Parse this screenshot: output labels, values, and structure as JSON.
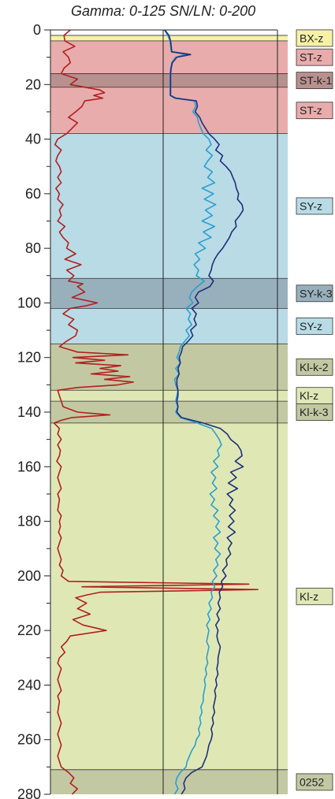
{
  "chart_data": {
    "type": "line",
    "title": "Gamma: 0-125  SN/LN: 0-200",
    "y_axis": {
      "min": 0,
      "max": 280,
      "inverted": true,
      "ticks": [
        0,
        20,
        40,
        60,
        80,
        100,
        120,
        140,
        160,
        180,
        200,
        220,
        240,
        260,
        280
      ]
    },
    "tracks": [
      {
        "name": "Gamma",
        "range": [
          0,
          125
        ]
      },
      {
        "name": "SN/LN",
        "range": [
          0,
          200
        ]
      }
    ],
    "zones": [
      {
        "label": "BX-z",
        "top": 2,
        "bottom": 4,
        "color": "#f7f1a6"
      },
      {
        "label": "ST-z",
        "top": 4,
        "bottom": 16,
        "color": "#e8acac"
      },
      {
        "label": "ST-k-1",
        "top": 16,
        "bottom": 21,
        "color": "#b8908e"
      },
      {
        "label": "ST-z",
        "top": 21,
        "bottom": 38,
        "color": "#e8acac"
      },
      {
        "label": "SY-z",
        "top": 38,
        "bottom": 91,
        "color": "#b9dbe6"
      },
      {
        "label": "SY-k-3",
        "top": 91,
        "bottom": 102,
        "color": "#98b0bc"
      },
      {
        "label": "SY-z",
        "top": 102,
        "bottom": 115,
        "color": "#b9dbe6"
      },
      {
        "label": "Kl-k-2",
        "top": 115,
        "bottom": 132,
        "color": "#c2c9a2"
      },
      {
        "label": "Kl-z",
        "top": 132,
        "bottom": 136,
        "color": "#dfe8b5"
      },
      {
        "label": "Kl-k-3",
        "top": 136,
        "bottom": 144,
        "color": "#c2c9a2"
      },
      {
        "label": "Kl-z",
        "top": 144,
        "bottom": 271,
        "color": "#dfe8b5"
      },
      {
        "label": "0252",
        "top": 271,
        "bottom": 280,
        "color": "#c2c9a2"
      }
    ],
    "series": [
      {
        "name": "Gamma",
        "color": "#b22020",
        "track": "Gamma",
        "depth": [
          0,
          2,
          4,
          6,
          8,
          10,
          12,
          14,
          16,
          18,
          20,
          22,
          23,
          24,
          25,
          26,
          28,
          30,
          32,
          34,
          36,
          38,
          40,
          42,
          44,
          46,
          48,
          50,
          52,
          54,
          56,
          58,
          60,
          62,
          64,
          66,
          68,
          70,
          72,
          74,
          76,
          78,
          80,
          82,
          84,
          86,
          88,
          90,
          92,
          93,
          94,
          96,
          98,
          100,
          101,
          102,
          104,
          106,
          108,
          110,
          112,
          114,
          116,
          118,
          119,
          120,
          121,
          122,
          123,
          124,
          125,
          126,
          127,
          128,
          129,
          130,
          131,
          132,
          134,
          136,
          138,
          140,
          141,
          142,
          143,
          144,
          146,
          148,
          150,
          152,
          154,
          156,
          158,
          160,
          162,
          164,
          166,
          168,
          170,
          172,
          174,
          176,
          178,
          180,
          182,
          184,
          186,
          188,
          190,
          192,
          194,
          196,
          198,
          200,
          202,
          203,
          204,
          205,
          206,
          207,
          208,
          210,
          212,
          214,
          216,
          218,
          220,
          222,
          224,
          226,
          228,
          230,
          232,
          234,
          236,
          238,
          240,
          242,
          244,
          246,
          248,
          250,
          252,
          254,
          256,
          258,
          260,
          262,
          264,
          266,
          268,
          270,
          272,
          274,
          276,
          278,
          280
        ],
        "values": [
          22,
          15,
          16,
          27,
          14,
          20,
          22,
          15,
          12,
          30,
          22,
          55,
          60,
          48,
          58,
          38,
          35,
          28,
          20,
          30,
          24,
          18,
          8,
          5,
          12,
          8,
          6,
          10,
          12,
          8,
          12,
          6,
          10,
          8,
          14,
          10,
          12,
          8,
          16,
          10,
          14,
          20,
          18,
          28,
          16,
          34,
          18,
          26,
          20,
          36,
          30,
          38,
          24,
          52,
          40,
          22,
          14,
          26,
          20,
          30,
          28,
          18,
          10,
          30,
          86,
          25,
          60,
          28,
          78,
          55,
          75,
          45,
          88,
          60,
          92,
          75,
          30,
          8,
          10,
          12,
          14,
          30,
          66,
          24,
          12,
          4,
          10,
          8,
          12,
          8,
          11,
          10,
          7,
          12,
          10,
          8,
          10,
          12,
          8,
          10,
          9,
          8,
          12,
          10,
          11,
          9,
          12,
          10,
          8,
          10,
          12,
          10,
          14,
          12,
          20,
          220,
          35,
          230,
          55,
          40,
          28,
          40,
          30,
          44,
          25,
          36,
          62,
          22,
          18,
          12,
          16,
          10,
          8,
          12,
          10,
          8,
          10,
          12,
          8,
          10,
          9,
          8,
          10,
          12,
          10,
          8,
          10,
          12,
          10,
          8,
          10,
          12,
          20,
          26,
          22,
          30,
          24
        ]
      },
      {
        "name": "SN",
        "color": "#2a9fd0",
        "track": "SN/LN",
        "depth": [
          0,
          2,
          4,
          6,
          8,
          9,
          10,
          12,
          14,
          16,
          18,
          20,
          22,
          24,
          25,
          26,
          28,
          30,
          32,
          34,
          36,
          38,
          40,
          42,
          44,
          46,
          48,
          50,
          52,
          54,
          56,
          58,
          60,
          62,
          64,
          66,
          68,
          70,
          72,
          74,
          76,
          78,
          80,
          82,
          84,
          86,
          88,
          90,
          92,
          94,
          96,
          98,
          100,
          102,
          104,
          106,
          108,
          110,
          112,
          114,
          116,
          118,
          120,
          122,
          124,
          126,
          128,
          130,
          132,
          134,
          136,
          138,
          140,
          142,
          144,
          146,
          148,
          150,
          152,
          154,
          156,
          158,
          160,
          162,
          164,
          166,
          168,
          170,
          172,
          174,
          176,
          178,
          180,
          182,
          184,
          186,
          188,
          190,
          192,
          194,
          196,
          198,
          200,
          202,
          204,
          206,
          208,
          210,
          212,
          214,
          216,
          218,
          220,
          222,
          224,
          226,
          228,
          230,
          232,
          234,
          236,
          238,
          240,
          242,
          244,
          246,
          248,
          250,
          252,
          254,
          256,
          258,
          260,
          262,
          264,
          266,
          268,
          270,
          272,
          274,
          276,
          278,
          280
        ],
        "values": [
          2,
          8,
          12,
          13,
          14,
          40,
          22,
          15,
          13,
          12,
          12,
          12,
          12,
          12,
          20,
          55,
          57,
          52,
          60,
          62,
          66,
          70,
          80,
          84,
          75,
          86,
          78,
          72,
          86,
          78,
          90,
          68,
          88,
          72,
          92,
          74,
          86,
          68,
          90,
          70,
          84,
          62,
          74,
          56,
          64,
          54,
          62,
          58,
          72,
          60,
          50,
          46,
          52,
          40,
          48,
          44,
          50,
          40,
          46,
          38,
          30,
          28,
          24,
          30,
          22,
          28,
          20,
          22,
          26,
          24,
          22,
          26,
          22,
          30,
          60,
          85,
          92,
          98,
          102,
          95,
          98,
          88,
          96,
          84,
          92,
          86,
          94,
          82,
          90,
          84,
          96,
          88,
          98,
          92,
          100,
          88,
          96,
          90,
          100,
          92,
          96,
          88,
          94,
          86,
          90,
          84,
          86,
          80,
          84,
          78,
          82,
          76,
          80,
          78,
          76,
          80,
          78,
          76,
          78,
          74,
          76,
          72,
          74,
          72,
          70,
          70,
          66,
          68,
          64,
          66,
          62,
          64,
          58,
          56,
          50,
          46,
          42,
          40,
          30,
          24,
          22,
          26,
          20
        ]
      },
      {
        "name": "LN",
        "color": "#1f2f7a",
        "track": "SN/LN",
        "depth": [
          0,
          2,
          4,
          6,
          8,
          9,
          10,
          12,
          14,
          16,
          18,
          20,
          22,
          24,
          25,
          26,
          28,
          30,
          32,
          34,
          36,
          38,
          40,
          42,
          44,
          46,
          48,
          50,
          52,
          54,
          56,
          58,
          60,
          62,
          64,
          66,
          68,
          70,
          72,
          74,
          76,
          78,
          80,
          82,
          84,
          86,
          88,
          90,
          92,
          94,
          96,
          98,
          100,
          102,
          104,
          106,
          108,
          110,
          112,
          114,
          116,
          118,
          120,
          122,
          124,
          126,
          128,
          130,
          132,
          134,
          136,
          138,
          140,
          142,
          144,
          146,
          148,
          150,
          152,
          154,
          156,
          158,
          160,
          162,
          164,
          166,
          168,
          170,
          172,
          174,
          176,
          178,
          180,
          182,
          184,
          186,
          188,
          190,
          192,
          194,
          196,
          198,
          200,
          202,
          204,
          206,
          208,
          210,
          212,
          214,
          216,
          218,
          220,
          222,
          224,
          226,
          228,
          230,
          232,
          234,
          236,
          238,
          240,
          242,
          244,
          246,
          248,
          250,
          252,
          254,
          256,
          258,
          260,
          262,
          264,
          266,
          268,
          270,
          272,
          274,
          276,
          278,
          280
        ],
        "values": [
          3,
          10,
          13,
          14,
          15,
          48,
          24,
          16,
          14,
          13,
          13,
          13,
          13,
          13,
          22,
          58,
          60,
          56,
          64,
          68,
          74,
          80,
          90,
          98,
          92,
          104,
          100,
          110,
          118,
          122,
          126,
          128,
          132,
          130,
          138,
          140,
          134,
          126,
          128,
          120,
          116,
          110,
          104,
          96,
          90,
          86,
          84,
          80,
          88,
          82,
          62,
          56,
          62,
          50,
          58,
          54,
          58,
          48,
          52,
          44,
          34,
          32,
          28,
          30,
          26,
          28,
          24,
          24,
          26,
          26,
          24,
          26,
          24,
          32,
          70,
          100,
          112,
          118,
          130,
          136,
          138,
          126,
          140,
          118,
          128,
          114,
          130,
          112,
          122,
          116,
          126,
          116,
          124,
          114,
          126,
          112,
          120,
          114,
          118,
          110,
          112,
          104,
          110,
          102,
          104,
          98,
          100,
          96,
          100,
          94,
          98,
          92,
          96,
          94,
          96,
          100,
          98,
          96,
          96,
          94,
          96,
          92,
          94,
          90,
          92,
          90,
          88,
          90,
          86,
          88,
          84,
          86,
          84,
          80,
          78,
          76,
          72,
          68,
          50,
          40,
          36,
          38,
          32
        ]
      }
    ]
  }
}
